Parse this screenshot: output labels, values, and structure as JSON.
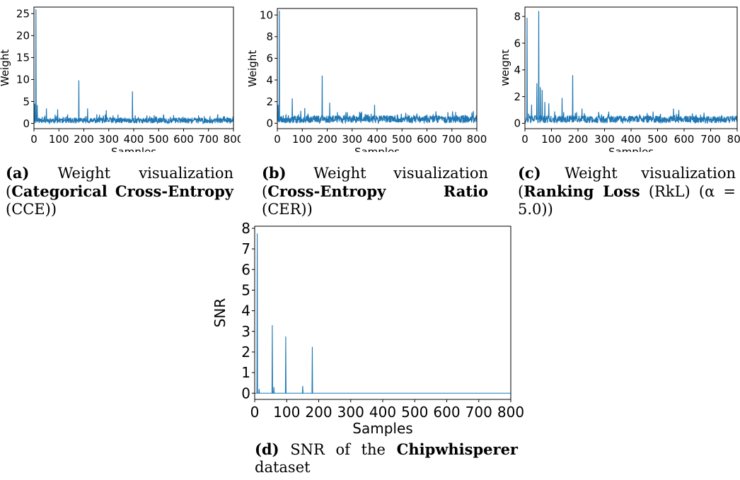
{
  "chart_data": [
    {
      "type": "line",
      "panel": "a",
      "xlabel": "Samples",
      "ylabel": "Weight",
      "xlim": [
        0,
        800
      ],
      "ylim": [
        -1.2,
        26.5
      ],
      "xticks": [
        0,
        100,
        200,
        300,
        400,
        500,
        600,
        700,
        800
      ],
      "yticks": [
        0,
        5,
        10,
        15,
        20,
        25
      ],
      "color": "#1f77b4",
      "baseline": 0.8,
      "spikes": [
        {
          "x": 8,
          "y": 26.0
        },
        {
          "x": 3,
          "y": 4.5
        },
        {
          "x": 13,
          "y": 4.2
        },
        {
          "x": 50,
          "y": 3.4
        },
        {
          "x": 95,
          "y": 3.2
        },
        {
          "x": 180,
          "y": 9.8
        },
        {
          "x": 215,
          "y": 3.4
        },
        {
          "x": 290,
          "y": 3.0
        },
        {
          "x": 395,
          "y": 7.3
        },
        {
          "x": 560,
          "y": 1.9
        },
        {
          "x": 760,
          "y": 1.6
        }
      ],
      "caption": {
        "label": "(a)",
        "text": "Weight visualization (",
        "bold": "Categorical Cross-Entropy",
        "suffix": "(CCE))"
      }
    },
    {
      "type": "line",
      "panel": "b",
      "xlabel": "Samples",
      "ylabel": "Weight",
      "xlim": [
        0,
        800
      ],
      "ylim": [
        -0.5,
        10.6
      ],
      "xticks": [
        0,
        100,
        200,
        300,
        400,
        500,
        600,
        700,
        800
      ],
      "yticks": [
        0,
        2,
        4,
        6,
        8,
        10
      ],
      "color": "#1f77b4",
      "baseline": 0.45,
      "spikes": [
        {
          "x": 8,
          "y": 10.4
        },
        {
          "x": 3,
          "y": 1.7
        },
        {
          "x": 60,
          "y": 2.3
        },
        {
          "x": 110,
          "y": 1.4
        },
        {
          "x": 180,
          "y": 4.4
        },
        {
          "x": 210,
          "y": 1.9
        },
        {
          "x": 390,
          "y": 1.7
        },
        {
          "x": 560,
          "y": 0.9
        },
        {
          "x": 785,
          "y": 1.0
        }
      ],
      "caption": {
        "label": "(b)",
        "text": "Weight visualization (",
        "bold": "Cross-Entropy Ratio",
        "suffix": "(CER))"
      }
    },
    {
      "type": "line",
      "panel": "c",
      "xlabel": "Samples",
      "ylabel": "Weight",
      "xlim": [
        0,
        800
      ],
      "ylim": [
        -0.4,
        8.7
      ],
      "xticks": [
        0,
        100,
        200,
        300,
        400,
        500,
        600,
        700,
        800
      ],
      "yticks": [
        0,
        2,
        4,
        6,
        8
      ],
      "color": "#1f77b4",
      "baseline": 0.35,
      "spikes": [
        {
          "x": 8,
          "y": 7.9
        },
        {
          "x": 25,
          "y": 1.4
        },
        {
          "x": 45,
          "y": 3.0
        },
        {
          "x": 52,
          "y": 8.4
        },
        {
          "x": 58,
          "y": 2.7
        },
        {
          "x": 65,
          "y": 2.5
        },
        {
          "x": 75,
          "y": 1.6
        },
        {
          "x": 90,
          "y": 1.5
        },
        {
          "x": 140,
          "y": 1.9
        },
        {
          "x": 180,
          "y": 3.6
        },
        {
          "x": 215,
          "y": 1.1
        },
        {
          "x": 560,
          "y": 1.1
        },
        {
          "x": 580,
          "y": 1.0
        }
      ],
      "caption": {
        "label": "(c)",
        "text": "Weight visualization (",
        "bold": "Ranking Loss",
        "suffix": "(RkL) (α = 5.0))"
      }
    },
    {
      "type": "line",
      "panel": "d",
      "xlabel": "Samples",
      "ylabel": "SNR",
      "xlim": [
        0,
        800
      ],
      "ylim": [
        -0.3,
        8.1
      ],
      "xticks": [
        0,
        100,
        200,
        300,
        400,
        500,
        600,
        700,
        800
      ],
      "yticks": [
        0,
        1,
        2,
        3,
        4,
        5,
        6,
        7,
        8
      ],
      "color": "#1f77b4",
      "baseline": 0.0,
      "spikes": [
        {
          "x": 8,
          "y": 7.75
        },
        {
          "x": 14,
          "y": 0.2
        },
        {
          "x": 55,
          "y": 3.3
        },
        {
          "x": 60,
          "y": 0.3
        },
        {
          "x": 97,
          "y": 2.75
        },
        {
          "x": 150,
          "y": 0.35
        },
        {
          "x": 180,
          "y": 2.25
        }
      ],
      "caption": {
        "label": "(d)",
        "text": "SNR of the",
        "bold": "Chipwhisperer",
        "suffix": "dataset"
      }
    }
  ]
}
